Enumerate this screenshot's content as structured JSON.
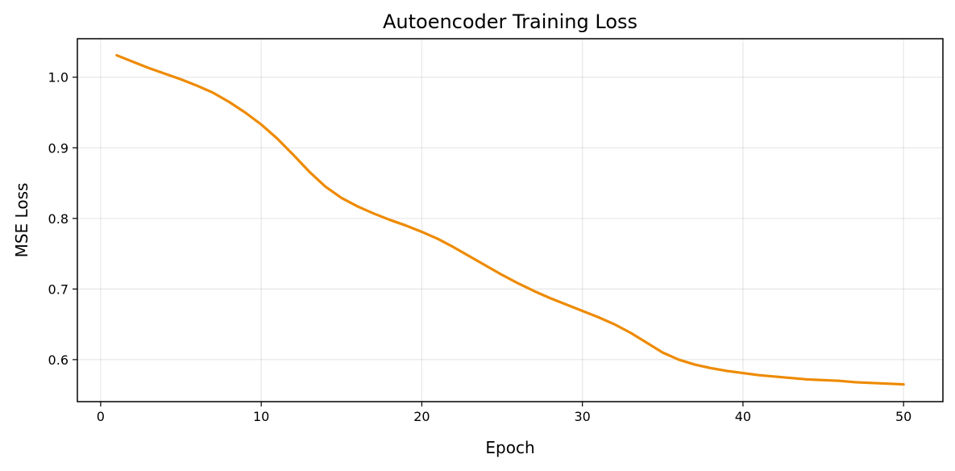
{
  "chart_data": {
    "type": "line",
    "title": "Autoencoder Training Loss",
    "xlabel": "Epoch",
    "ylabel": "MSE Loss",
    "xlim": [
      -1.45,
      52.45
    ],
    "ylim": [
      0.5405,
      1.0545
    ],
    "xticks": [
      0,
      10,
      20,
      30,
      40,
      50
    ],
    "yticks": [
      0.6,
      0.7,
      0.8,
      0.9,
      1.0
    ],
    "xtick_labels": [
      "0",
      "10",
      "20",
      "30",
      "40",
      "50"
    ],
    "ytick_labels": [
      "0.6",
      "0.7",
      "0.8",
      "0.9",
      "1.0"
    ],
    "grid": true,
    "legend": null,
    "series": [
      {
        "color": "#ee8a00",
        "x": [
          1,
          2,
          3,
          4,
          5,
          6,
          7,
          8,
          9,
          10,
          11,
          12,
          13,
          14,
          15,
          16,
          17,
          18,
          19,
          20,
          21,
          22,
          23,
          24,
          25,
          26,
          27,
          28,
          29,
          30,
          31,
          32,
          33,
          34,
          35,
          36,
          37,
          38,
          39,
          40,
          41,
          42,
          43,
          44,
          45,
          46,
          47,
          48,
          49,
          50
        ],
        "y": [
          1.031,
          1.022,
          1.013,
          1.005,
          0.997,
          0.988,
          0.978,
          0.965,
          0.95,
          0.933,
          0.913,
          0.89,
          0.866,
          0.845,
          0.829,
          0.817,
          0.807,
          0.798,
          0.79,
          0.781,
          0.771,
          0.759,
          0.746,
          0.733,
          0.72,
          0.708,
          0.697,
          0.687,
          0.678,
          0.669,
          0.66,
          0.65,
          0.638,
          0.624,
          0.61,
          0.6,
          0.593,
          0.588,
          0.584,
          0.581,
          0.578,
          0.576,
          0.574,
          0.572,
          0.571,
          0.57,
          0.568,
          0.567,
          0.566,
          0.565
        ]
      }
    ]
  }
}
